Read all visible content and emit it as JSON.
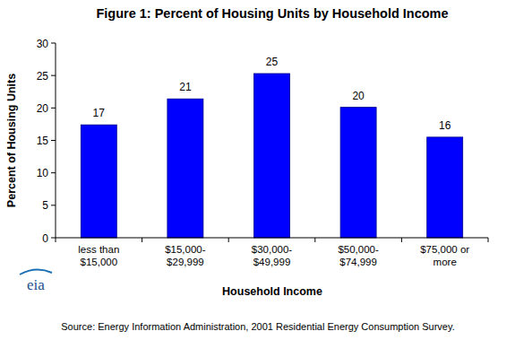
{
  "chart_data": {
    "type": "bar",
    "title": "Figure 1:  Percent of Housing Units by Household Income",
    "x_label": "Household Income",
    "y_label": "Percent of Housing Units",
    "categories": [
      "less than $15,000",
      "$15,000- $29,999",
      "$30,000- $49,999",
      "$50,000- $74,999",
      "$75,000 or more"
    ],
    "values": [
      17.4,
      21.4,
      25.3,
      20.1,
      15.5
    ],
    "value_labels": [
      "17",
      "21",
      "25",
      "20",
      "16"
    ],
    "color": "#0000ff",
    "ylim": [
      0,
      30
    ],
    "yticks": [
      0,
      5,
      10,
      15,
      20,
      25,
      30
    ],
    "grid": false,
    "data_labels": true,
    "logo": "eia",
    "source": "Source:  Energy Information Administration, 2001 Residential Energy Consumption Survey."
  }
}
